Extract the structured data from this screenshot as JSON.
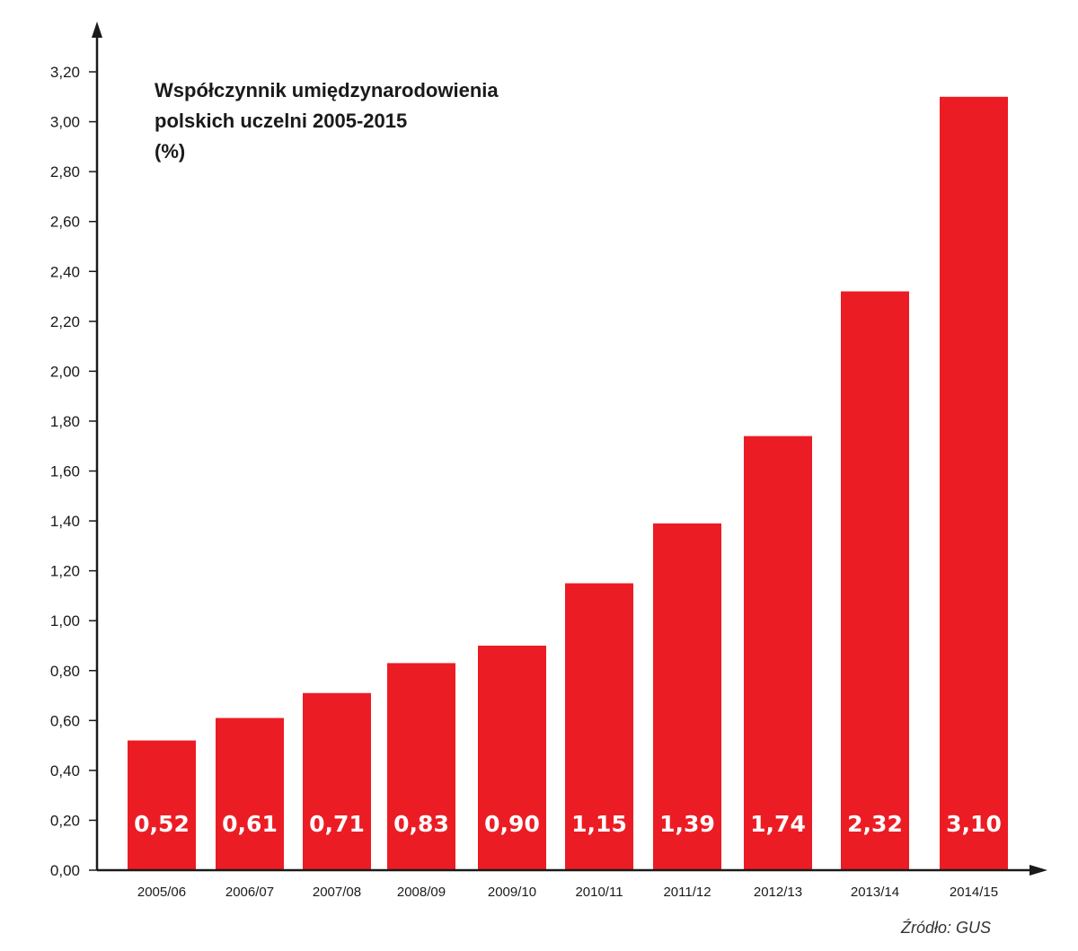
{
  "chart_data": {
    "type": "bar",
    "title_lines": [
      "Współczynnik umiędzynarodowienia",
      "polskich uczelni 2005-2015",
      "(%)"
    ],
    "categories": [
      "2005/06",
      "2006/07",
      "2007/08",
      "2008/09",
      "2009/10",
      "2010/11",
      "2011/12",
      "2012/13",
      "2013/14",
      "2014/15"
    ],
    "values": [
      0.52,
      0.61,
      0.71,
      0.83,
      0.9,
      1.15,
      1.39,
      1.74,
      2.32,
      3.1
    ],
    "value_labels": [
      "0,52",
      "0,61",
      "0,71",
      "0,83",
      "0,90",
      "1,15",
      "1,39",
      "1,74",
      "2,32",
      "3,10"
    ],
    "bar_color": "#ec1c24",
    "ylim": [
      0,
      3.2
    ],
    "y_ticks": [
      0,
      0.2,
      0.4,
      0.6,
      0.8,
      1.0,
      1.2,
      1.4,
      1.6,
      1.8,
      2.0,
      2.2,
      2.4,
      2.6,
      2.8,
      3.0,
      3.2
    ],
    "y_tick_labels": [
      "0,00",
      "0,20",
      "0,40",
      "0,60",
      "0,80",
      "1,00",
      "1,20",
      "1,40",
      "1,60",
      "1,80",
      "2,00",
      "2,20",
      "2,40",
      "2,60",
      "2,80",
      "3,00",
      "3,20"
    ],
    "grid": false,
    "source": "Źródło: GUS"
  }
}
